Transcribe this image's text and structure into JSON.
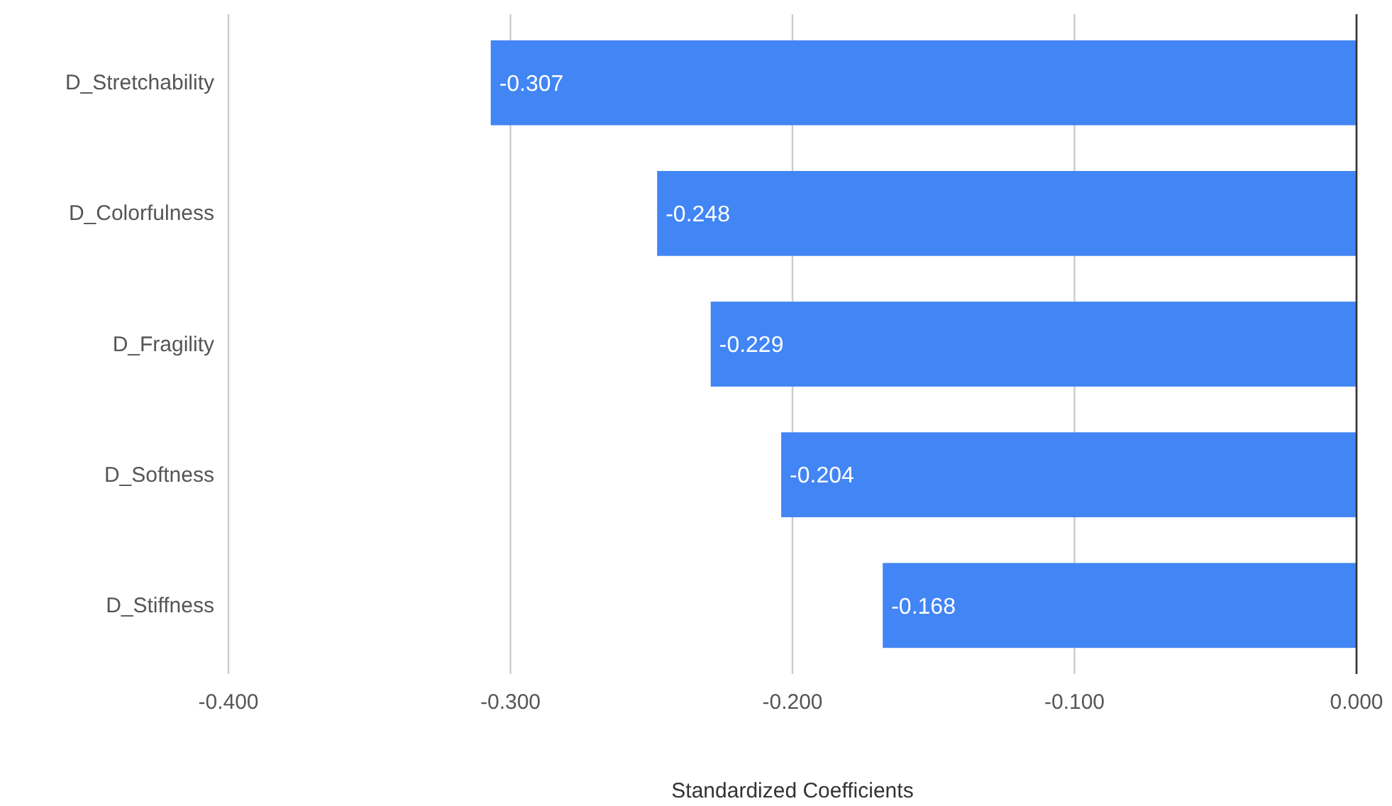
{
  "chart_data": {
    "type": "bar",
    "orientation": "horizontal",
    "xlabel": "Standardized Coefficients",
    "categories": [
      "D_Stretchability",
      "D_Colorfulness",
      "D_Fragility",
      "D_Softness",
      "D_Stiffness"
    ],
    "values": [
      -0.307,
      -0.248,
      -0.229,
      -0.204,
      -0.168
    ],
    "color": "#4285f4",
    "xlim": [
      -0.4,
      0
    ],
    "xticks": [
      {
        "value": -0.4,
        "label": "-0.400"
      },
      {
        "value": -0.3,
        "label": "-0.300"
      },
      {
        "value": -0.2,
        "label": "-0.200"
      },
      {
        "value": -0.1,
        "label": "-0.100"
      },
      {
        "value": 0,
        "label": "0.000"
      }
    ],
    "grid": "x",
    "data_labels": true
  }
}
